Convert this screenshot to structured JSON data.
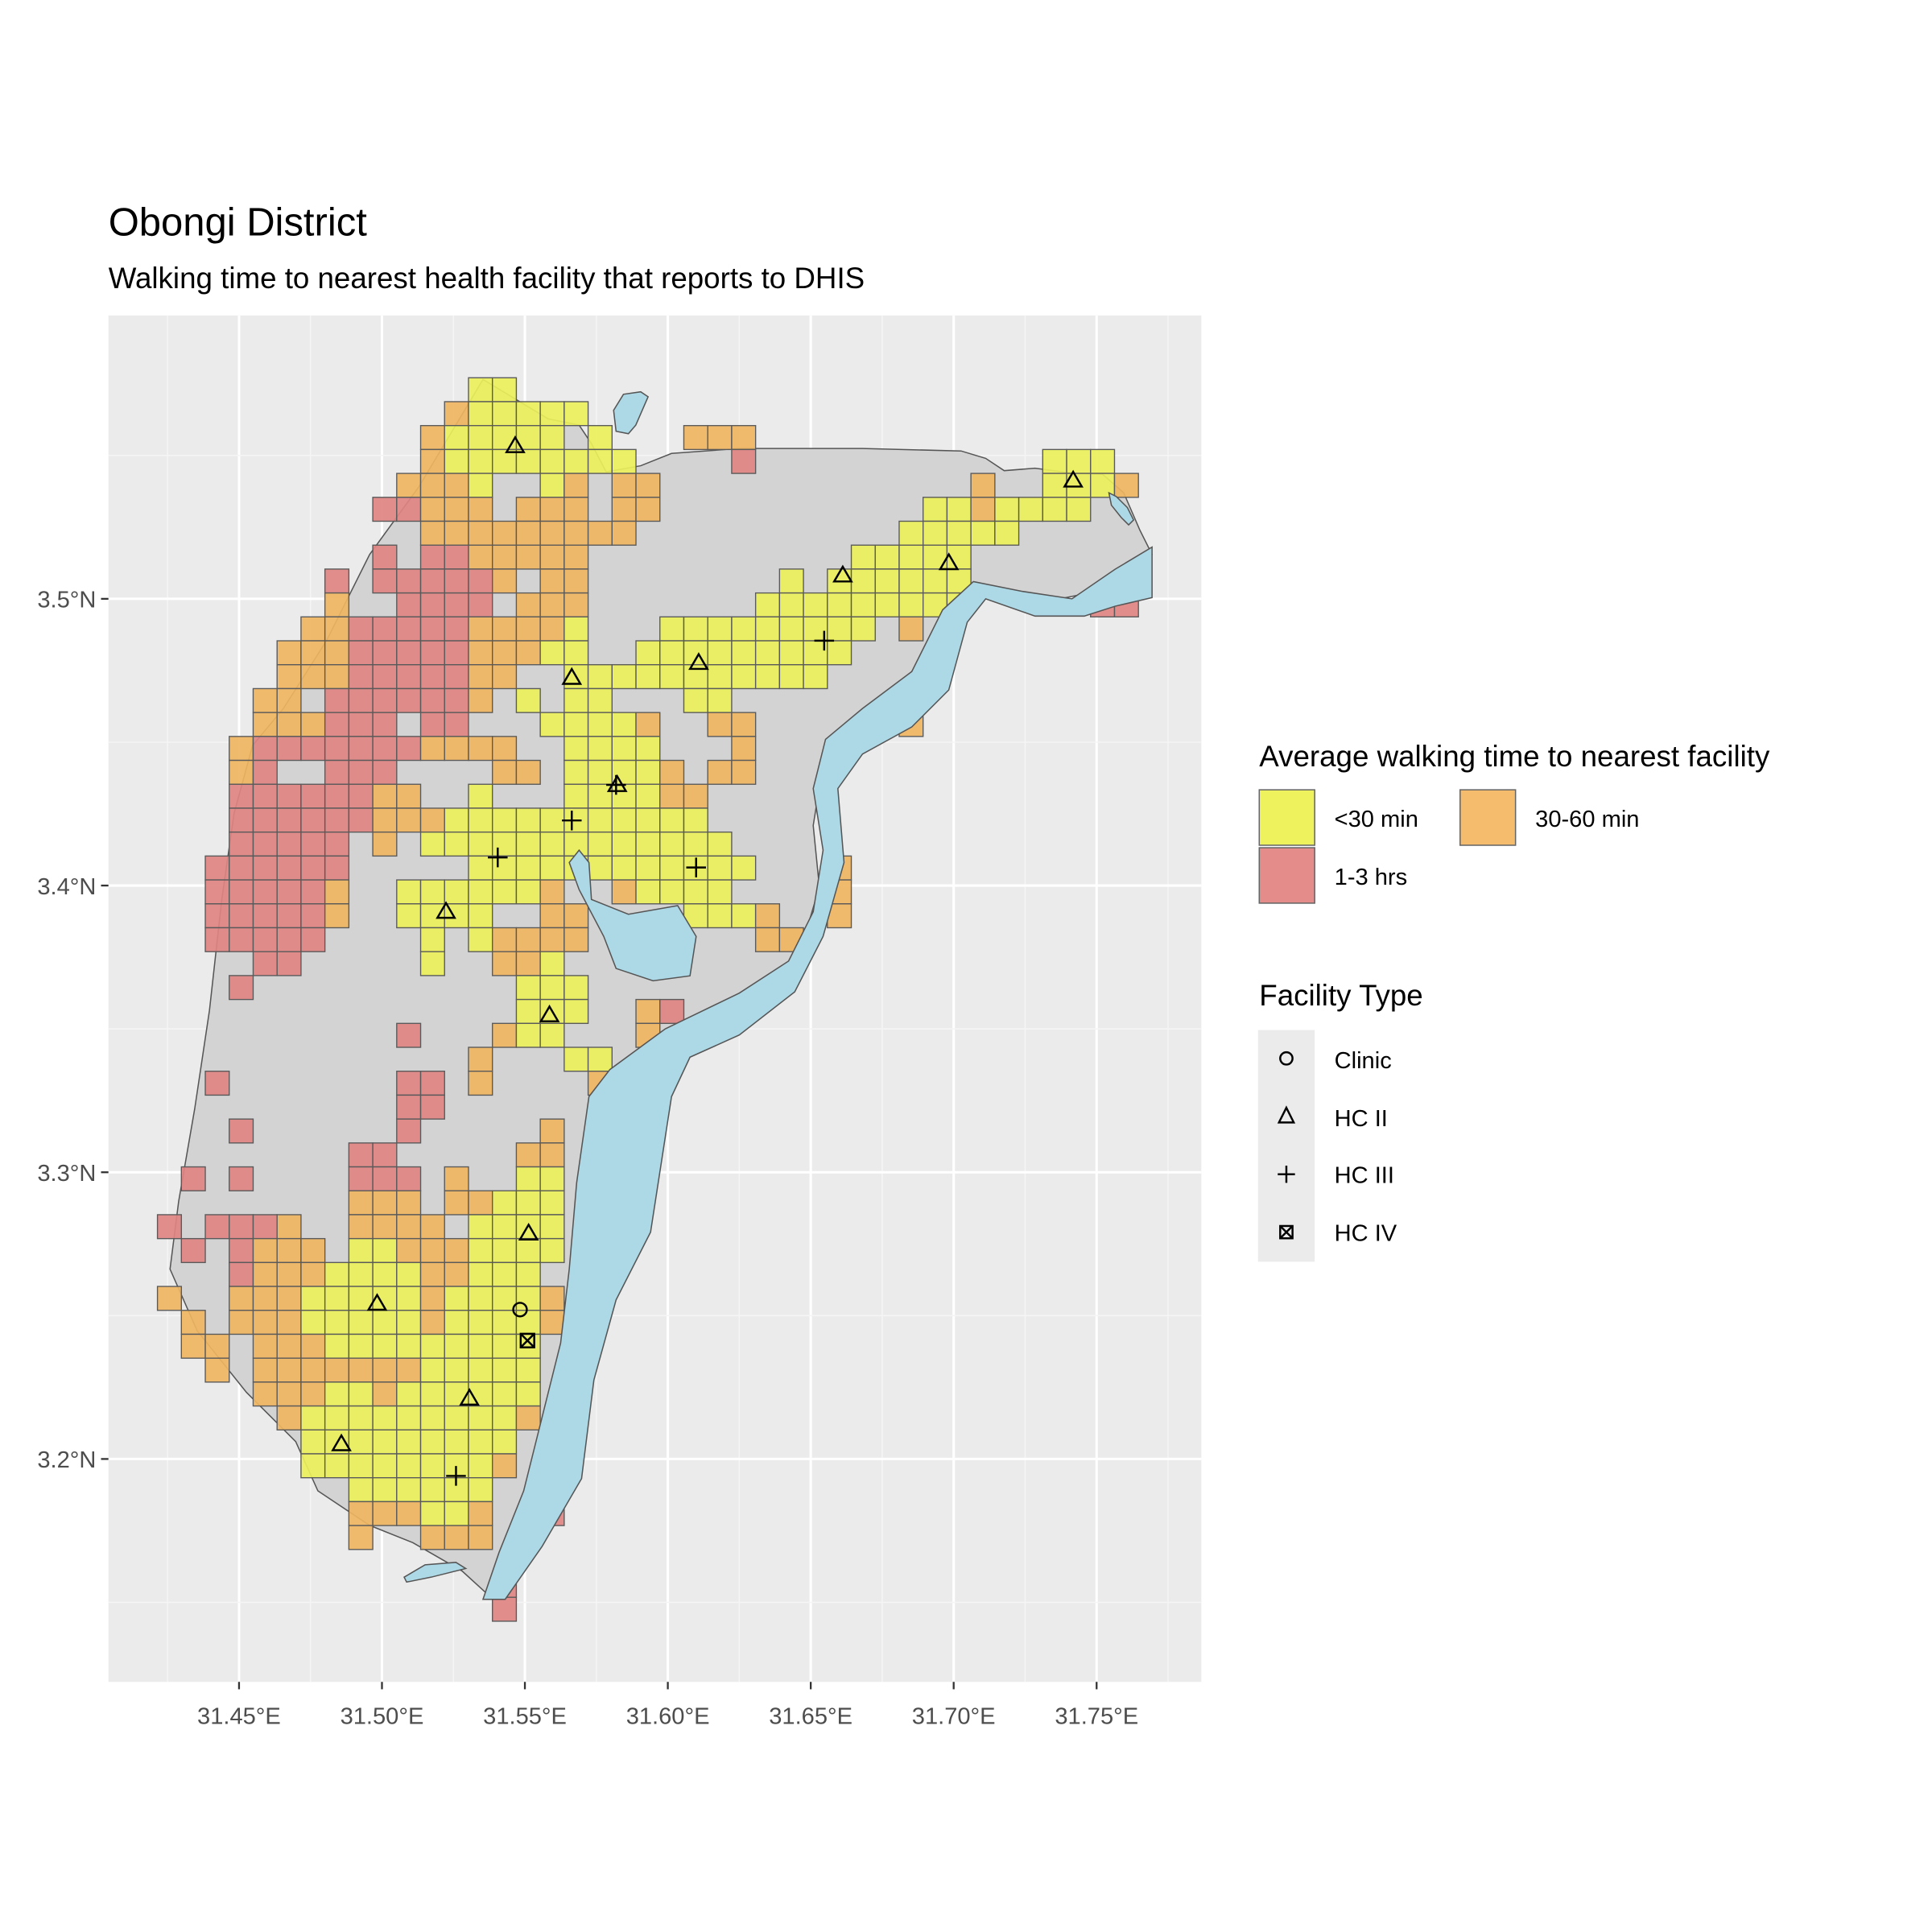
{
  "title": "Obongi District",
  "subtitle": "Walking time to nearest health facility that reports to DHIS",
  "chart_data": {
    "type": "map",
    "title": "Obongi District",
    "subtitle": "Walking time to nearest health facility that reports to DHIS",
    "x_ticks": [
      "31.45°E",
      "31.50°E",
      "31.55°E",
      "31.60°E",
      "31.65°E",
      "31.70°E",
      "31.75°E"
    ],
    "x_tick_values": [
      31.45,
      31.5,
      31.55,
      31.6,
      31.65,
      31.7,
      31.75
    ],
    "y_ticks": [
      "3.2°N",
      "3.3°N",
      "3.4°N",
      "3.5°N"
    ],
    "y_tick_values": [
      3.2,
      3.3,
      3.4,
      3.5
    ],
    "xlim": [
      31.404,
      31.786
    ],
    "ylim": [
      3.123,
      3.6
    ],
    "grid": true,
    "colors": {
      "y": "#EAF05A",
      "o": "#F0B562",
      "r": "#DE8483",
      "land": "#D3D3D3",
      "water": "#ADD8E6",
      "panel": "#EBEBEB"
    },
    "walking_time_grid": {
      "origin_lon": 31.4382,
      "origin_lat": 3.5771,
      "cell_lon": 0.00837,
      "cell_lat": 0.00834,
      "codes": {
        "y": "<30 min",
        "o": "30-60 min",
        "r": "1-3 hrs"
      },
      "rows": [
        [
          "y:11..12"
        ],
        [
          "o:10",
          "y:11..15"
        ],
        [
          "o:9",
          "y:10..14",
          "y:16",
          "o:20..22"
        ],
        [
          "o:9",
          "y:10..17",
          "r:22",
          "y:35..37"
        ],
        [
          "o:8..10",
          "y:11",
          "y:14",
          "o:15",
          "o:17..18",
          "o:32",
          "y:35..37",
          "o:38"
        ],
        [
          "r:7..8",
          "o:9..11",
          "o:13..15",
          "o:17..18",
          "y:30..31",
          "o:32",
          "y:33..36"
        ],
        [
          "o:9..17",
          "y:29..33"
        ],
        [
          "r:7",
          "r:9..10",
          "o:11..15",
          "y:27..31"
        ],
        [
          "r:5",
          "r:7..11",
          "o:12",
          "o:14..15",
          "y:24",
          "y:26..31"
        ],
        [
          "o:5",
          "r:8..11",
          "o:13..15",
          "y:23..31",
          "r:37..38"
        ],
        [
          "o:4..5",
          "r:6..10",
          "o:11..14",
          "y:15",
          "y:19..27",
          "o:29"
        ],
        [
          "o:3..5",
          "r:6..10",
          "o:11..13",
          "y:14..15",
          "y:18..26"
        ],
        [
          "o:3..5",
          "r:6..10",
          "o:11..12",
          "y:15..25"
        ],
        [
          "o:2..3",
          "r:5..10",
          "o:11",
          "y:13",
          "y:15..16",
          "y:20..21"
        ],
        [
          "o:2..4",
          "r:5..7",
          "r:9..10",
          "y:14..17",
          "o:18",
          "o:21..22",
          "o:29"
        ],
        [
          "o:1",
          "r:2..8",
          "o:9..12",
          "y:15..18",
          "o:22"
        ],
        [
          "o:1",
          "r:2",
          "r:5..7",
          "o:12..13",
          "y:15..18",
          "o:19",
          "o:21..22"
        ],
        [
          "r:1..6",
          "o:7..8",
          "y:11",
          "y:15..18",
          "o:19..20"
        ],
        [
          "r:1..6",
          "o:7..9",
          "y:10..20"
        ],
        [
          "r:1..5",
          "o:7",
          "y:9..21"
        ],
        [
          "r:0..5",
          "y:11..22",
          "o:26"
        ],
        [
          "r:0..4",
          "o:5",
          "y:8..13",
          "o:14",
          "o:17",
          "y:18..21",
          "o:26"
        ],
        [
          "r:0..4",
          "o:5",
          "y:8..11",
          "o:14..15",
          "y:20..22",
          "o:23",
          "o:26"
        ],
        [
          "r:0..4",
          "y:9",
          "y:11",
          "o:12..15",
          "o:23..24"
        ],
        [
          "r:2..3",
          "y:9",
          "o:12..13",
          "y:14"
        ],
        [
          "r:1",
          "y:13..15"
        ],
        [
          "y:13..15",
          "o:18",
          "r:19"
        ],
        [
          "r:8",
          "o:12",
          "y:13..14",
          "o:18"
        ],
        [
          "o:11",
          "y:15..16"
        ],
        [
          "r:0",
          "r:8..9",
          "o:11",
          "o:16"
        ],
        [
          "r:8..9"
        ],
        [
          "r:1",
          "r:8",
          "o:14"
        ],
        [
          "r:6..7",
          "o:13..14"
        ],
        [
          "r:-1",
          "r:1",
          "r:6..8",
          "o:10",
          "y:13..14"
        ],
        [
          "o:6..8",
          "o:10..11",
          "y:12..14"
        ],
        [
          "r:-2",
          "r:0..2",
          "o:3",
          "o:6..9",
          "y:11..14"
        ],
        [
          "r:-1",
          "r:1",
          "o:2..4",
          "y:6..7",
          "o:8..10",
          "y:11..14"
        ],
        [
          "r:1",
          "o:2..4",
          "y:5..8",
          "o:9..10",
          "y:11..13"
        ],
        [
          "o:-2",
          "o:1..3",
          "y:4..8",
          "o:9",
          "y:10..13",
          "o:14"
        ],
        [
          "o:-1",
          "o:1..3",
          "y:4..8",
          "o:9",
          "y:10..13",
          "o:14"
        ],
        [
          "o:-1..0",
          "o:2..4",
          "y:5..13"
        ],
        [
          "o:0",
          "o:2..8",
          "y:9..13",
          "r:15"
        ],
        [
          "o:2..4",
          "y:5..6",
          "o:7",
          "y:8..13"
        ],
        [
          "o:3",
          "y:4..12",
          "o:13"
        ],
        [
          "y:4..12"
        ],
        [
          "y:4..11",
          "o:12"
        ],
        [
          "y:6..11"
        ],
        [
          "o:6..8",
          "y:9..10",
          "o:11",
          "r:14"
        ],
        [
          "o:6",
          "o:9..11"
        ],
        [],
        [
          "r:12"
        ],
        [
          "r:12"
        ]
      ]
    },
    "facilities": [
      {
        "type": "HC II",
        "lon": 31.5466,
        "lat": 3.5533
      },
      {
        "type": "HC II",
        "lon": 31.6612,
        "lat": 3.5082
      },
      {
        "type": "HC II",
        "lon": 31.6983,
        "lat": 3.5125
      },
      {
        "type": "HC II",
        "lon": 31.7418,
        "lat": 3.5413
      },
      {
        "type": "HC II",
        "lon": 31.5664,
        "lat": 3.4725
      },
      {
        "type": "HC II",
        "lon": 31.6108,
        "lat": 3.4777
      },
      {
        "type": "HC II",
        "lon": 31.5823,
        "lat": 3.4351
      },
      {
        "type": "HC II",
        "lon": 31.5224,
        "lat": 3.3909
      },
      {
        "type": "HC II",
        "lon": 31.5586,
        "lat": 3.3548
      },
      {
        "type": "HC II",
        "lon": 31.5513,
        "lat": 3.2787
      },
      {
        "type": "HC II",
        "lon": 31.4983,
        "lat": 3.2542
      },
      {
        "type": "HC II",
        "lon": 31.5306,
        "lat": 3.2211
      },
      {
        "type": "HC II",
        "lon": 31.4858,
        "lat": 3.2052
      },
      {
        "type": "HC III",
        "lon": 31.6547,
        "lat": 3.4854
      },
      {
        "type": "HC III",
        "lon": 31.5664,
        "lat": 3.4227
      },
      {
        "type": "HC III",
        "lon": 31.5405,
        "lat": 3.4098
      },
      {
        "type": "HC III",
        "lon": 31.6099,
        "lat": 3.4063
      },
      {
        "type": "HC III",
        "lon": 31.5819,
        "lat": 3.4351
      },
      {
        "type": "HC III",
        "lon": 31.5259,
        "lat": 3.1941
      },
      {
        "type": "Clinic",
        "lon": 31.5483,
        "lat": 3.2521
      },
      {
        "type": "HC IV",
        "lon": 31.5509,
        "lat": 3.2413
      }
    ]
  },
  "legend": {
    "fill_title": "Average walking time to nearest facility",
    "fill_items": [
      {
        "code": "y",
        "label": "<30 min"
      },
      {
        "code": "o",
        "label": "30-60 min"
      },
      {
        "code": "r",
        "label": "1-3 hrs"
      }
    ],
    "shape_title": "Facility Type",
    "shape_items": [
      {
        "label": "Clinic",
        "icon": "circle-icon"
      },
      {
        "label": "HC II",
        "icon": "triangle-icon"
      },
      {
        "label": "HC III",
        "icon": "plus-icon"
      },
      {
        "label": "HC IV",
        "icon": "square-cross-icon"
      }
    ]
  }
}
